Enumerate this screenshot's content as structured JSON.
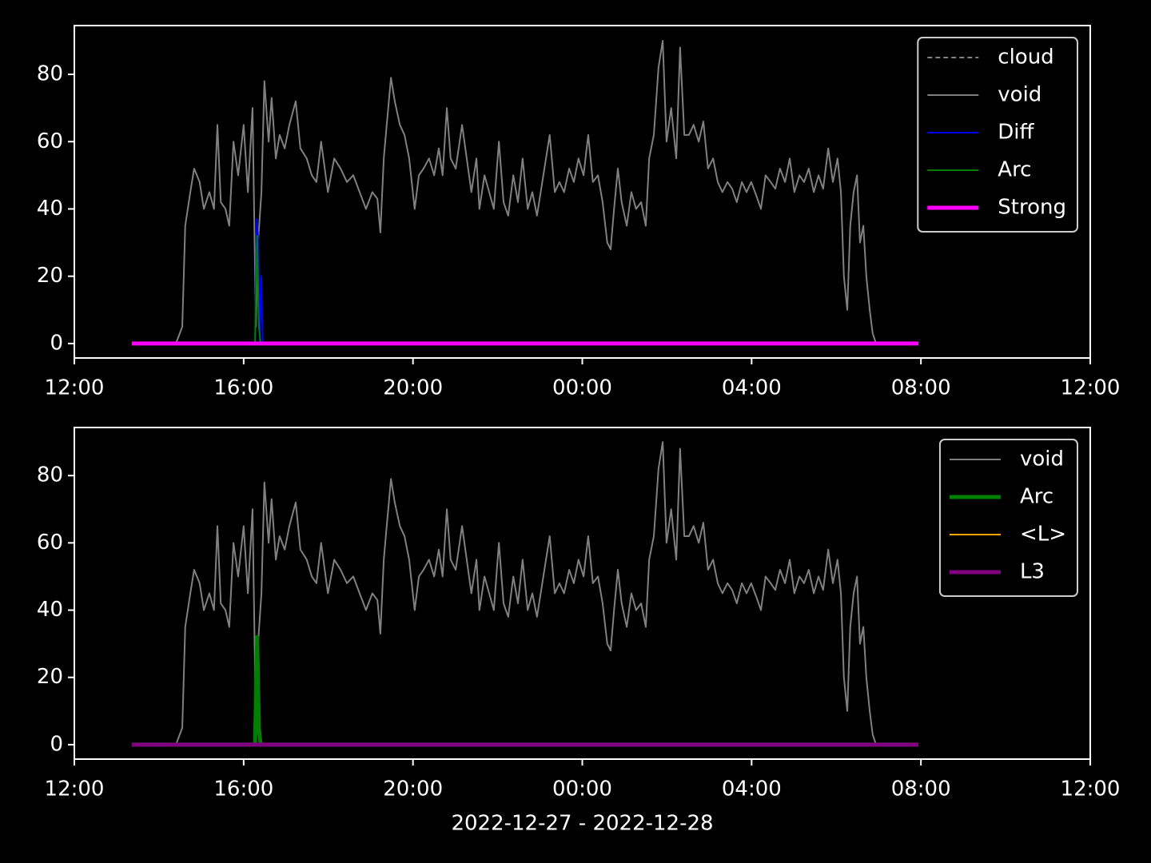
{
  "chart_data": [
    {
      "type": "line",
      "legend": "upper right",
      "xlim": [
        12,
        36
      ],
      "xticks": [
        {
          "value": 12,
          "label": "12:00"
        },
        {
          "value": 16,
          "label": "16:00"
        },
        {
          "value": 20,
          "label": "20:00"
        },
        {
          "value": 24,
          "label": "00:00"
        },
        {
          "value": 28,
          "label": "04:00"
        },
        {
          "value": 32,
          "label": "08:00"
        },
        {
          "value": 36,
          "label": "12:00"
        }
      ],
      "ylim": [
        -4.3,
        94.5
      ],
      "yticks": [
        0,
        20,
        40,
        60,
        80
      ],
      "series": [
        {
          "name": "cloud",
          "color": "#808080",
          "linestyle": "dashed",
          "linewidth": 2,
          "x": [],
          "values": []
        },
        {
          "name": "void",
          "color": "#808080",
          "linestyle": "solid",
          "linewidth": 2,
          "x": [
            13.36,
            14.4,
            14.55,
            14.62,
            14.74,
            14.83,
            14.96,
            15.06,
            15.19,
            15.3,
            15.38,
            15.46,
            15.57,
            15.66,
            15.76,
            15.87,
            16.0,
            16.1,
            16.21,
            16.29,
            16.34,
            16.42,
            16.49,
            16.59,
            16.66,
            16.76,
            16.85,
            16.97,
            17.08,
            17.23,
            17.34,
            17.49,
            17.61,
            17.72,
            17.83,
            17.99,
            18.14,
            18.29,
            18.44,
            18.59,
            18.74,
            18.89,
            19.04,
            19.16,
            19.23,
            19.31,
            19.38,
            19.48,
            19.57,
            19.69,
            19.8,
            19.91,
            20.04,
            20.14,
            20.25,
            20.38,
            20.5,
            20.61,
            20.7,
            20.8,
            20.89,
            21.01,
            21.16,
            21.27,
            21.38,
            21.5,
            21.57,
            21.69,
            21.8,
            21.91,
            22.03,
            22.14,
            22.25,
            22.37,
            22.48,
            22.59,
            22.71,
            22.82,
            22.93,
            23.08,
            23.23,
            23.35,
            23.46,
            23.57,
            23.69,
            23.8,
            23.91,
            24.03,
            24.14,
            24.25,
            24.37,
            24.48,
            24.59,
            24.67,
            24.75,
            24.84,
            24.93,
            25.05,
            25.16,
            25.27,
            25.39,
            25.5,
            25.58,
            25.69,
            25.8,
            25.9,
            25.99,
            26.1,
            26.22,
            26.31,
            26.41,
            26.52,
            26.63,
            26.75,
            26.86,
            26.97,
            27.09,
            27.2,
            27.31,
            27.43,
            27.54,
            27.65,
            27.77,
            27.88,
            27.99,
            28.11,
            28.22,
            28.33,
            28.45,
            28.56,
            28.67,
            28.79,
            28.9,
            29.01,
            29.13,
            29.24,
            29.35,
            29.47,
            29.58,
            29.69,
            29.81,
            29.92,
            30.03,
            30.11,
            30.18,
            30.26,
            30.33,
            30.41,
            30.49,
            30.56,
            30.64,
            30.71,
            30.79,
            30.86,
            30.94,
            31.94
          ],
          "values": [
            0,
            0,
            5,
            35,
            45,
            52,
            48,
            40,
            45,
            40,
            65,
            42,
            40,
            35,
            60,
            50,
            65,
            45,
            70,
            5,
            30,
            45,
            78,
            60,
            73,
            55,
            62,
            58,
            65,
            72,
            58,
            55,
            50,
            48,
            60,
            45,
            55,
            52,
            48,
            50,
            45,
            40,
            45,
            43,
            33,
            55,
            65,
            79,
            72,
            65,
            62,
            55,
            40,
            50,
            52,
            55,
            50,
            58,
            50,
            70,
            55,
            52,
            65,
            55,
            45,
            55,
            40,
            50,
            45,
            40,
            60,
            42,
            38,
            50,
            42,
            55,
            40,
            45,
            38,
            50,
            62,
            45,
            48,
            45,
            52,
            48,
            55,
            50,
            62,
            48,
            50,
            42,
            30,
            28,
            40,
            52,
            42,
            35,
            45,
            40,
            42,
            35,
            55,
            62,
            82,
            90,
            60,
            70,
            55,
            88,
            62,
            62,
            65,
            60,
            66,
            52,
            55,
            48,
            45,
            48,
            46,
            42,
            48,
            45,
            48,
            44,
            40,
            50,
            48,
            46,
            52,
            48,
            55,
            45,
            50,
            48,
            52,
            45,
            50,
            46,
            58,
            48,
            55,
            45,
            20,
            10,
            35,
            45,
            50,
            30,
            35,
            20,
            10,
            3,
            0,
            0
          ]
        },
        {
          "name": "Diff",
          "color": "#0000ff",
          "linestyle": "solid",
          "linewidth": 2,
          "x": [
            13.36,
            16.27,
            16.31,
            16.35,
            16.38,
            16.42,
            16.45,
            31.94
          ],
          "values": [
            0,
            0,
            37,
            30,
            0,
            20,
            0,
            0
          ]
        },
        {
          "name": "Arc",
          "color": "#008000",
          "linestyle": "solid",
          "linewidth": 2,
          "x": [
            13.36,
            16.27,
            16.32,
            16.36,
            16.4,
            31.94
          ],
          "values": [
            0,
            0,
            32,
            5,
            0,
            0
          ]
        },
        {
          "name": "Strong",
          "color": "#ff00ff",
          "linestyle": "solid",
          "linewidth": 5,
          "x": [
            13.36,
            31.94
          ],
          "values": [
            0,
            0
          ]
        }
      ]
    },
    {
      "type": "line",
      "legend": "upper right",
      "xlabel": "2022-12-27 - 2022-12-28",
      "xlim": [
        12,
        36
      ],
      "xticks": [
        {
          "value": 12,
          "label": "12:00"
        },
        {
          "value": 16,
          "label": "16:00"
        },
        {
          "value": 20,
          "label": "20:00"
        },
        {
          "value": 24,
          "label": "00:00"
        },
        {
          "value": 28,
          "label": "04:00"
        },
        {
          "value": 32,
          "label": "08:00"
        },
        {
          "value": 36,
          "label": "12:00"
        }
      ],
      "ylim": [
        -4.3,
        94.3
      ],
      "yticks": [
        0,
        20,
        40,
        60,
        80
      ],
      "series": [
        {
          "name": "void",
          "color": "#808080",
          "linestyle": "solid",
          "linewidth": 2,
          "x": [
            13.36,
            14.4,
            14.55,
            14.62,
            14.74,
            14.83,
            14.96,
            15.06,
            15.19,
            15.3,
            15.38,
            15.46,
            15.57,
            15.66,
            15.76,
            15.87,
            16.0,
            16.1,
            16.21,
            16.29,
            16.34,
            16.42,
            16.49,
            16.59,
            16.66,
            16.76,
            16.85,
            16.97,
            17.08,
            17.23,
            17.34,
            17.49,
            17.61,
            17.72,
            17.83,
            17.99,
            18.14,
            18.29,
            18.44,
            18.59,
            18.74,
            18.89,
            19.04,
            19.16,
            19.23,
            19.31,
            19.38,
            19.48,
            19.57,
            19.69,
            19.8,
            19.91,
            20.04,
            20.14,
            20.25,
            20.38,
            20.5,
            20.61,
            20.7,
            20.8,
            20.89,
            21.01,
            21.16,
            21.27,
            21.38,
            21.5,
            21.57,
            21.69,
            21.8,
            21.91,
            22.03,
            22.14,
            22.25,
            22.37,
            22.48,
            22.59,
            22.71,
            22.82,
            22.93,
            23.08,
            23.23,
            23.35,
            23.46,
            23.57,
            23.69,
            23.8,
            23.91,
            24.03,
            24.14,
            24.25,
            24.37,
            24.48,
            24.59,
            24.67,
            24.75,
            24.84,
            24.93,
            25.05,
            25.16,
            25.27,
            25.39,
            25.5,
            25.58,
            25.69,
            25.8,
            25.9,
            25.99,
            26.1,
            26.22,
            26.31,
            26.41,
            26.52,
            26.63,
            26.75,
            26.86,
            26.97,
            27.09,
            27.2,
            27.31,
            27.43,
            27.54,
            27.65,
            27.77,
            27.88,
            27.99,
            28.11,
            28.22,
            28.33,
            28.45,
            28.56,
            28.67,
            28.79,
            28.9,
            29.01,
            29.13,
            29.24,
            29.35,
            29.47,
            29.58,
            29.69,
            29.81,
            29.92,
            30.03,
            30.11,
            30.18,
            30.26,
            30.33,
            30.41,
            30.49,
            30.56,
            30.64,
            30.71,
            30.79,
            30.86,
            30.94,
            31.94
          ],
          "values": [
            0,
            0,
            5,
            35,
            45,
            52,
            48,
            40,
            45,
            40,
            65,
            42,
            40,
            35,
            60,
            50,
            65,
            45,
            70,
            5,
            30,
            45,
            78,
            60,
            73,
            55,
            62,
            58,
            65,
            72,
            58,
            55,
            50,
            48,
            60,
            45,
            55,
            52,
            48,
            50,
            45,
            40,
            45,
            43,
            33,
            55,
            65,
            79,
            72,
            65,
            62,
            55,
            40,
            50,
            52,
            55,
            50,
            58,
            50,
            70,
            55,
            52,
            65,
            55,
            45,
            55,
            40,
            50,
            45,
            40,
            60,
            42,
            38,
            50,
            42,
            55,
            40,
            45,
            38,
            50,
            62,
            45,
            48,
            45,
            52,
            48,
            55,
            50,
            62,
            48,
            50,
            42,
            30,
            28,
            40,
            52,
            42,
            35,
            45,
            40,
            42,
            35,
            55,
            62,
            82,
            90,
            60,
            70,
            55,
            88,
            62,
            62,
            65,
            60,
            66,
            52,
            55,
            48,
            45,
            48,
            46,
            42,
            48,
            45,
            48,
            44,
            40,
            50,
            48,
            46,
            52,
            48,
            55,
            45,
            50,
            48,
            52,
            45,
            50,
            46,
            58,
            48,
            55,
            45,
            20,
            10,
            35,
            45,
            50,
            30,
            35,
            20,
            10,
            3,
            0,
            0
          ]
        },
        {
          "name": "Arc",
          "color": "#008000",
          "linestyle": "solid",
          "linewidth": 5,
          "x": [
            13.36,
            16.27,
            16.32,
            16.36,
            16.4,
            31.94
          ],
          "values": [
            0,
            0,
            32,
            5,
            0,
            0
          ]
        },
        {
          "name": "<L>",
          "color": "#ffa500",
          "linestyle": "solid",
          "linewidth": 2,
          "x": [
            13.36,
            31.94
          ],
          "values": [
            0,
            0
          ]
        },
        {
          "name": "L3",
          "color": "#800080",
          "linestyle": "solid",
          "linewidth": 5,
          "x": [
            13.36,
            31.94
          ],
          "values": [
            0,
            0
          ]
        }
      ]
    }
  ]
}
